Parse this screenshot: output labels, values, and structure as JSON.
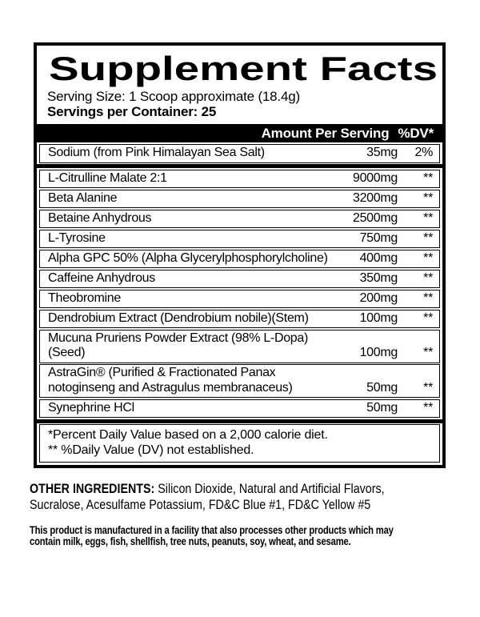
{
  "colors": {
    "ink": "#000000",
    "paper": "#ffffff"
  },
  "panel": {
    "title": "Supplement Facts",
    "serving_size": "Serving Size: 1 Scoop approximate (18.4g)",
    "servings_per_container": "Servings per Container: 25",
    "column_header": {
      "amount_label": "Amount Per Serving",
      "dv_label": "%DV*"
    },
    "sodium_row": {
      "name": "Sodium (from Pink Himalayan Sea Salt)",
      "amount": "35mg",
      "dv": "2%"
    },
    "ingredient_rows": [
      {
        "name": "L-Citrulline Malate 2:1",
        "amount": "9000mg",
        "dv": "**"
      },
      {
        "name": "Beta Alanine",
        "amount": "3200mg",
        "dv": "**"
      },
      {
        "name": "Betaine Anhydrous",
        "amount": "2500mg",
        "dv": "**"
      },
      {
        "name": "L-Tyrosine",
        "amount": "750mg",
        "dv": "**"
      },
      {
        "name": "Alpha GPC 50% (Alpha Glycerylphosphorylcholine)",
        "amount": "400mg",
        "dv": "**"
      },
      {
        "name": "Caffeine Anhydrous",
        "amount": "350mg",
        "dv": "**"
      },
      {
        "name": "Theobromine",
        "amount": "200mg",
        "dv": "**"
      },
      {
        "name": "Dendrobium Extract (Dendrobium nobile)(Stem)",
        "amount": "100mg",
        "dv": "**"
      },
      {
        "name": "Mucuna Pruriens Powder Extract (98% L-Dopa)(Seed)",
        "amount": "100mg",
        "dv": "**"
      },
      {
        "name": "AstraGin® (Purified & Fractionated Panax notoginseng and Astragulus membranaceus)",
        "amount": "50mg",
        "dv": "**"
      },
      {
        "name": "Synephrine HCl",
        "amount": "50mg",
        "dv": "**"
      }
    ],
    "footnotes": [
      "*Percent Daily Value based on a 2,000 calorie diet.",
      "** %Daily Value (DV) not established."
    ]
  },
  "other_ingredients": {
    "label": "OTHER INGREDIENTS:",
    "line1_rest": " Silicon Dioxide, Natural and Artificial Flavors,",
    "line2": "Sucralose, Acesulfame Potassium, FD&C Blue #1, FD&C Yellow #5"
  },
  "allergen_notice": {
    "line1": "This product is manufactured in a facility that also processes other products which may",
    "line2": "contain milk, eggs, fish, shellfish, tree nuts, peanuts, soy, wheat, and sesame."
  }
}
